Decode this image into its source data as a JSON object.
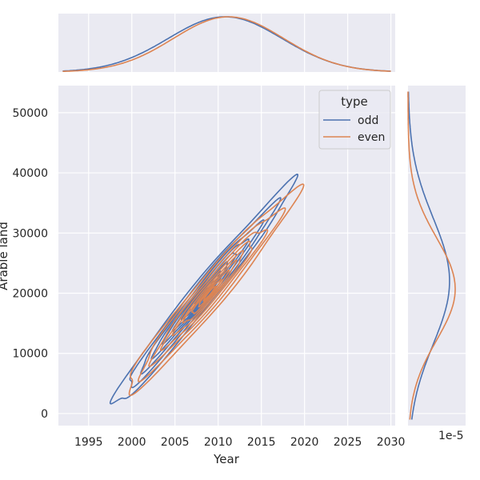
{
  "chart_data": {
    "type": "kde-joint",
    "xlabel": "Year",
    "ylabel": "Arable land",
    "xlim": [
      1991.5,
      2030.5
    ],
    "ylim": [
      -2000,
      54500
    ],
    "x_ticks": [
      1995,
      2000,
      2005,
      2010,
      2015,
      2020,
      2025,
      2030
    ],
    "y_ticks": [
      0,
      10000,
      20000,
      30000,
      40000,
      50000
    ],
    "marginal_y_offset_label": "1e-5",
    "grid": true,
    "legend": {
      "title": "type",
      "placement": "top-right"
    },
    "colors": {
      "odd": "#4c72b0",
      "even": "#dd8452",
      "background": "#eaeaf2",
      "grid": "#ffffff"
    },
    "series": [
      {
        "name": "odd",
        "x_density": {
          "mean": 2010.8,
          "sd": 6.6
        },
        "y_density": {
          "mean": 22000,
          "sd": 10500
        },
        "joint": {
          "anchor_x": 2008,
          "anchor_y": 19500,
          "slope": 1750,
          "spread_along": 6.8,
          "spread_across": 2300
        }
      },
      {
        "name": "even",
        "x_density": {
          "mean": 2011.2,
          "sd": 6.4
        },
        "y_density": {
          "mean": 20700,
          "sd": 8500
        },
        "joint": {
          "anchor_x": 2009,
          "anchor_y": 20000,
          "slope": 1650,
          "spread_along": 6.4,
          "spread_across": 2800
        }
      }
    ]
  }
}
